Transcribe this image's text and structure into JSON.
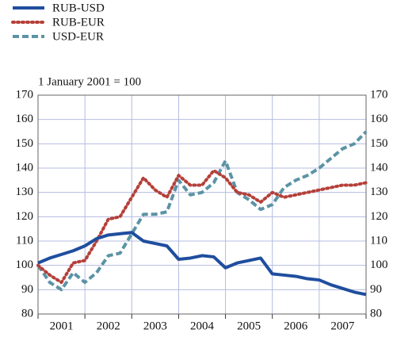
{
  "chart_data": {
    "type": "line",
    "annotation": "1 January 2001 = 100",
    "categories": [
      "2001",
      "2002",
      "2003",
      "2004",
      "2005",
      "2006",
      "2007"
    ],
    "x": [
      2001.0,
      2001.25,
      2001.5,
      2001.75,
      2002.0,
      2002.25,
      2002.5,
      2002.75,
      2003.0,
      2003.25,
      2003.5,
      2003.75,
      2004.0,
      2004.25,
      2004.5,
      2004.75,
      2005.0,
      2005.25,
      2005.5,
      2005.75,
      2006.0,
      2006.25,
      2006.5,
      2006.75,
      2007.0,
      2007.25,
      2007.5,
      2007.75,
      2008.0
    ],
    "xlim": [
      2001,
      2008
    ],
    "ylim": [
      80,
      170
    ],
    "yticks": [
      80,
      90,
      100,
      110,
      120,
      130,
      140,
      150,
      160,
      170
    ],
    "grid": true,
    "series": [
      {
        "name": "RUB-USD",
        "color": "#1f4e9e",
        "style": "solid",
        "values": [
          101,
          103,
          104.5,
          106,
          108,
          111,
          112.5,
          113,
          113.5,
          110,
          109,
          108,
          102.5,
          103,
          104,
          103.5,
          99,
          101,
          102,
          103,
          96.5,
          96,
          95.5,
          94.5,
          94,
          92,
          90.5,
          89,
          88
        ]
      },
      {
        "name": "RUB-EUR",
        "color": "#b5403a",
        "style": "dotted",
        "values": [
          100,
          96,
          93,
          101,
          102,
          110,
          119,
          120,
          128,
          136,
          131,
          128,
          137,
          133,
          133,
          139,
          136,
          130,
          129,
          126,
          130,
          128,
          129,
          130,
          131,
          132,
          133,
          133,
          134
        ]
      },
      {
        "name": "USD-EUR",
        "color": "#5b93a5",
        "style": "dashed",
        "values": [
          100,
          93,
          90,
          97,
          93,
          97,
          104,
          105,
          113,
          121,
          121,
          122,
          135,
          129,
          130,
          134,
          143,
          130,
          127,
          123,
          125,
          132,
          135,
          137,
          140,
          144,
          148,
          150,
          155
        ]
      }
    ]
  }
}
